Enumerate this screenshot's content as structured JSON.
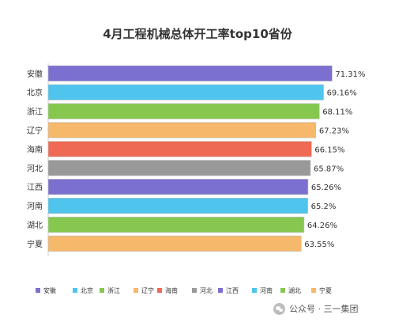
{
  "chart_data": {
    "type": "bar",
    "orientation": "horizontal",
    "title": "4月工程机械总体开工率top10省份",
    "categories": [
      "安徽",
      "北京",
      "浙江",
      "辽宁",
      "海南",
      "河北",
      "江西",
      "河南",
      "湖北",
      "宁夏"
    ],
    "values": [
      71.31,
      69.16,
      68.11,
      67.23,
      66.15,
      65.87,
      65.26,
      65.2,
      64.26,
      63.55
    ],
    "value_labels": [
      "71.31%",
      "69.16%",
      "68.11%",
      "67.23%",
      "66.15%",
      "65.87%",
      "65.26%",
      "65.2%",
      "64.26%",
      "63.55%"
    ],
    "colors": [
      "#7b6fcf",
      "#4fc4ec",
      "#86c84f",
      "#f6b86a",
      "#ee6a55",
      "#999999",
      "#7b6fcf",
      "#4fc4ec",
      "#86c84f",
      "#f6b86a"
    ],
    "legend_position": "bottom",
    "grid": false
  },
  "watermark": {
    "text": "公众号 · 三一集团",
    "icon": "wechat-icon"
  }
}
